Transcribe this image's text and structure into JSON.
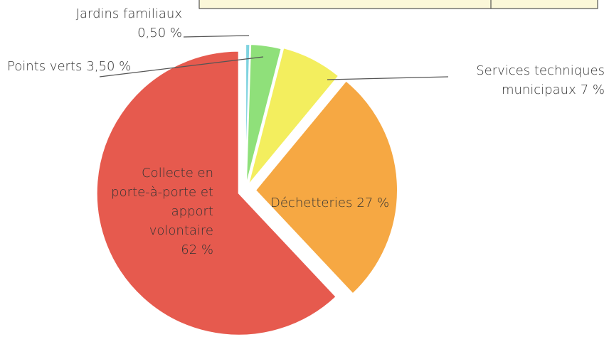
{
  "chart_data": {
    "type": "pie",
    "categories": [
      "Jardins familiaux",
      "Points verts",
      "Services techniques municipaux",
      "Déchetteries",
      "Collecte en porte-à-porte et apport volontaire"
    ],
    "values": [
      0.5,
      3.5,
      7,
      27,
      62
    ],
    "value_labels": [
      "0,50 %",
      "3,50 %",
      "7 %",
      "27 %",
      "62 %"
    ],
    "colors": [
      "#7fd3e0",
      "#8fe07a",
      "#f3ee5e",
      "#f6a843",
      "#e65a4e"
    ]
  }
}
